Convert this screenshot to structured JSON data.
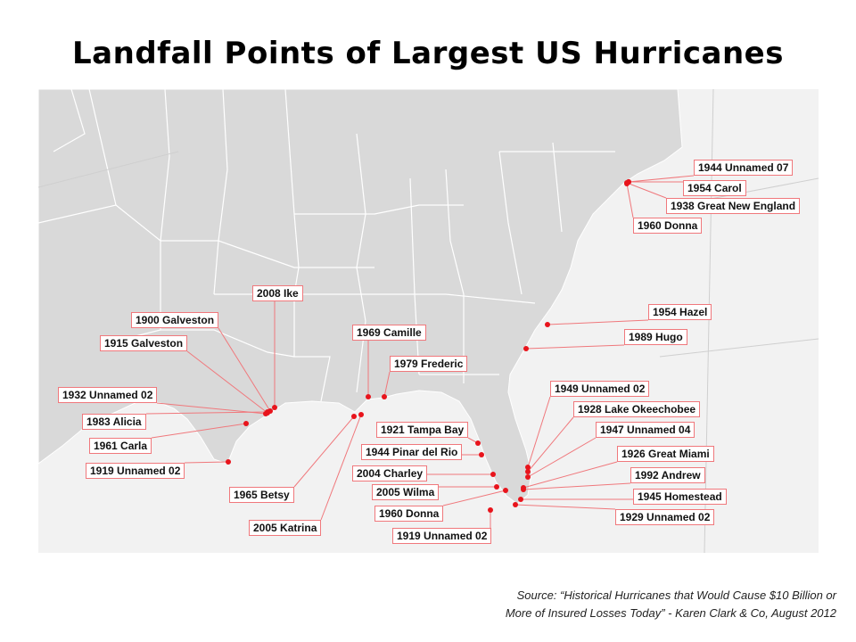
{
  "title": "Landfall Points of Largest US Hurricanes",
  "colors": {
    "marker": "#e8141c",
    "leader": "#f0787c",
    "land": "#d9d9d9",
    "water": "#f2f2f2"
  },
  "hurricanes": [
    {
      "label": "1944 Unnamed 07"
    },
    {
      "label": "1954 Carol"
    },
    {
      "label": "1938 Great New England"
    },
    {
      "label": "1960 Donna"
    },
    {
      "label": "1954 Hazel"
    },
    {
      "label": "1989 Hugo"
    },
    {
      "label": "1949 Unnamed 02"
    },
    {
      "label": "1928 Lake Okeechobee"
    },
    {
      "label": "1947 Unnamed 04"
    },
    {
      "label": "1926 Great Miami"
    },
    {
      "label": "1992 Andrew"
    },
    {
      "label": "1945 Homestead"
    },
    {
      "label": "1929 Unnamed 02"
    },
    {
      "label": "1919 Unnamed 02"
    },
    {
      "label": "1960 Donna"
    },
    {
      "label": "2005 Wilma"
    },
    {
      "label": "2004 Charley"
    },
    {
      "label": "1944 Pinar del Rio"
    },
    {
      "label": "1921 Tampa Bay"
    },
    {
      "label": "1979 Frederic"
    },
    {
      "label": "1969 Camille"
    },
    {
      "label": "2008 Ike"
    },
    {
      "label": "1900 Galveston"
    },
    {
      "label": "1915 Galveston"
    },
    {
      "label": "1932 Unnamed 02"
    },
    {
      "label": "1983 Alicia"
    },
    {
      "label": "1961 Carla"
    },
    {
      "label": "1919 Unnamed 02"
    },
    {
      "label": "1965 Betsy"
    },
    {
      "label": "2005 Katrina"
    }
  ],
  "source": {
    "line1": "Source: “Historical Hurricanes that Would Cause $10 Billion or",
    "line2": "More of Insured Losses Today”  - Karen Clark & Co, August 2012"
  }
}
